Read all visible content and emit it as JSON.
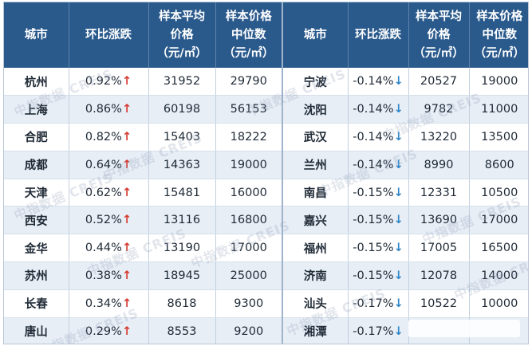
{
  "headers": {
    "city": "城市",
    "change": "环比涨跌",
    "avg_price_line1": "样本平均",
    "avg_price_line2": "价格",
    "avg_unit": "（元/㎡）",
    "median_line1": "样本价格",
    "median_line2": "中位数",
    "median_unit": "（元/㎡）"
  },
  "left_rows": [
    {
      "city": "杭州",
      "change": "0.92%",
      "avg": "31952",
      "median": "29790"
    },
    {
      "city": "上海",
      "change": "0.86%",
      "avg": "60198",
      "median": "56153"
    },
    {
      "city": "合肥",
      "change": "0.82%",
      "avg": "15403",
      "median": "18222"
    },
    {
      "city": "成都",
      "change": "0.64%",
      "avg": "14363",
      "median": "19000"
    },
    {
      "city": "天津",
      "change": "0.62%",
      "avg": "15481",
      "median": "16000"
    },
    {
      "city": "西安",
      "change": "0.52%",
      "avg": "13116",
      "median": "16800"
    },
    {
      "city": "金华",
      "change": "0.44%",
      "avg": "13190",
      "median": "17000"
    },
    {
      "city": "苏州",
      "change": "0.38%",
      "avg": "18945",
      "median": "25000"
    },
    {
      "city": "长春",
      "change": "0.34%",
      "avg": "8618",
      "median": "9300"
    },
    {
      "city": "唐山",
      "change": "0.29%",
      "avg": "8553",
      "median": "9200"
    }
  ],
  "right_rows": [
    {
      "city": "宁波",
      "change": "-0.14%",
      "avg": "20527",
      "median": "19000"
    },
    {
      "city": "沈阳",
      "change": "-0.14%",
      "avg": "9782",
      "median": "11000"
    },
    {
      "city": "武汉",
      "change": "-0.14%",
      "avg": "13220",
      "median": "13500"
    },
    {
      "city": "兰州",
      "change": "-0.14%",
      "avg": "8990",
      "median": "8600"
    },
    {
      "city": "南昌",
      "change": "-0.15%",
      "avg": "12331",
      "median": "10500"
    },
    {
      "city": "嘉兴",
      "change": "-0.15%",
      "avg": "13690",
      "median": "17000"
    },
    {
      "city": "福州",
      "change": "-0.15%",
      "avg": "17005",
      "median": "16500"
    },
    {
      "city": "济南",
      "change": "-0.15%",
      "avg": "12078",
      "median": "14000"
    },
    {
      "city": "汕头",
      "change": "-0.17%",
      "avg": "10522",
      "median": "10000"
    },
    {
      "city": "湘潭",
      "change": "-0.17%",
      "avg": "",
      "median": ""
    }
  ],
  "arrows": {
    "up": "↑",
    "down": "↓"
  },
  "watermark_text": "中指数据 CREIS",
  "colors": {
    "header_bg": "#2a5a8c",
    "up": "#d63a2f",
    "down": "#2f86c9",
    "stripe": "#e7eef6"
  }
}
